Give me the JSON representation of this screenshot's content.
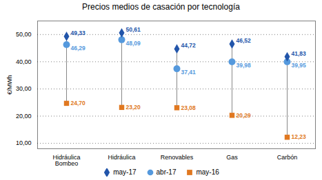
{
  "chart_data": {
    "type": "scatter",
    "title": "Precios medios de casación por tecnología",
    "ylabel": "€/MWh",
    "categories": [
      "Hidráulica\nBombeo",
      "Hidráulica",
      "Renovables",
      "Gas",
      "Carbón"
    ],
    "series": [
      {
        "name": "may-17",
        "color": "#2255aa",
        "marker": "diamond",
        "values": [
          49.33,
          50.61,
          44.72,
          46.52,
          41.83
        ],
        "value_labels": [
          "49,33",
          "50,61",
          "44,72",
          "46,52",
          "41,83"
        ]
      },
      {
        "name": "abr-17",
        "color": "#5599dd",
        "marker": "circle",
        "values": [
          46.29,
          48.09,
          37.41,
          39.98,
          39.95
        ],
        "value_labels": [
          "46,29",
          "48,09",
          "37,41",
          "39,98",
          "39,95"
        ]
      },
      {
        "name": "may-16",
        "color": "#e07820",
        "marker": "square",
        "values": [
          24.7,
          23.2,
          23.08,
          20.29,
          12.23
        ],
        "value_labels": [
          "24,70",
          "23,20",
          "23,08",
          "20,29",
          "12,23"
        ]
      }
    ],
    "color": "#888888",
    "ylim": [
      8,
      55
    ],
    "yticks": [
      {
        "value": 10.0,
        "label": "10,00"
      },
      {
        "value": 20.0,
        "label": "20,00"
      },
      {
        "value": 30.0,
        "label": "30,00"
      },
      {
        "value": 40.0,
        "label": "40,00"
      },
      {
        "value": 50.0,
        "label": "50,00"
      }
    ],
    "grid": true,
    "legend": "bottom",
    "data_labels": true
  }
}
